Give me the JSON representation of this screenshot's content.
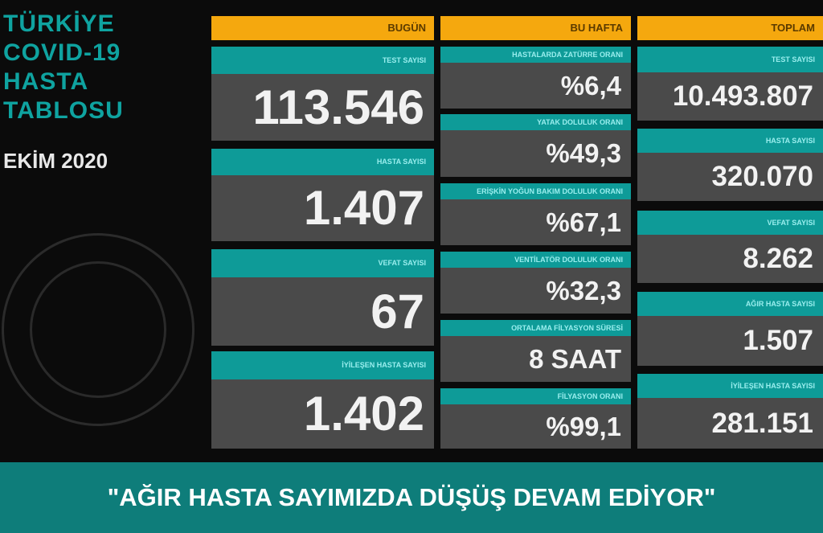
{
  "title": {
    "lines": [
      "TÜRKİYE",
      "COVID-19",
      "HASTA",
      "TABLOSU"
    ],
    "date": "EKİM 2020"
  },
  "columns": [
    {
      "header": "BUGÜN",
      "items": [
        {
          "label": "TEST SAYISI",
          "value": "113.546"
        },
        {
          "label": "HASTA SAYISI",
          "value": "1.407"
        },
        {
          "label": "VEFAT SAYISI",
          "value": "67"
        },
        {
          "label": "İYİLEŞEN HASTA SAYISI",
          "value": "1.402"
        }
      ]
    },
    {
      "header": "BU HAFTA",
      "items": [
        {
          "label": "HASTALARDA ZATÜRRE ORANI",
          "value": "%6,4"
        },
        {
          "label": "YATAK DOLULUK ORANI",
          "value": "%49,3"
        },
        {
          "label": "ERİŞKİN YOĞUN BAKIM DOLULUK ORANI",
          "value": "%67,1"
        },
        {
          "label": "VENTİLATÖR DOLULUK ORANI",
          "value": "%32,3"
        },
        {
          "label": "ORTALAMA FİLYASYON SÜRESİ",
          "value": "8 SAAT"
        },
        {
          "label": "FİLYASYON ORANI",
          "value": "%99,1"
        }
      ]
    },
    {
      "header": "TOPLAM",
      "items": [
        {
          "label": "TEST SAYISI",
          "value": "10.493.807"
        },
        {
          "label": "HASTA SAYISI",
          "value": "320.070"
        },
        {
          "label": "VEFAT SAYISI",
          "value": "8.262"
        },
        {
          "label": "AĞIR HASTA SAYISI",
          "value": "1.507"
        },
        {
          "label": "İYİLEŞEN HASTA SAYISI",
          "value": "281.151"
        }
      ]
    }
  ],
  "banner": "\"AĞIR HASTA SAYIMIZDA DÜŞÜŞ DEVAM EDİYOR\"",
  "colors": {
    "header": "#f5a80e",
    "label": "#0e9b98",
    "value_bg": "#4a4a4a",
    "banner": "#0e7d7a"
  }
}
